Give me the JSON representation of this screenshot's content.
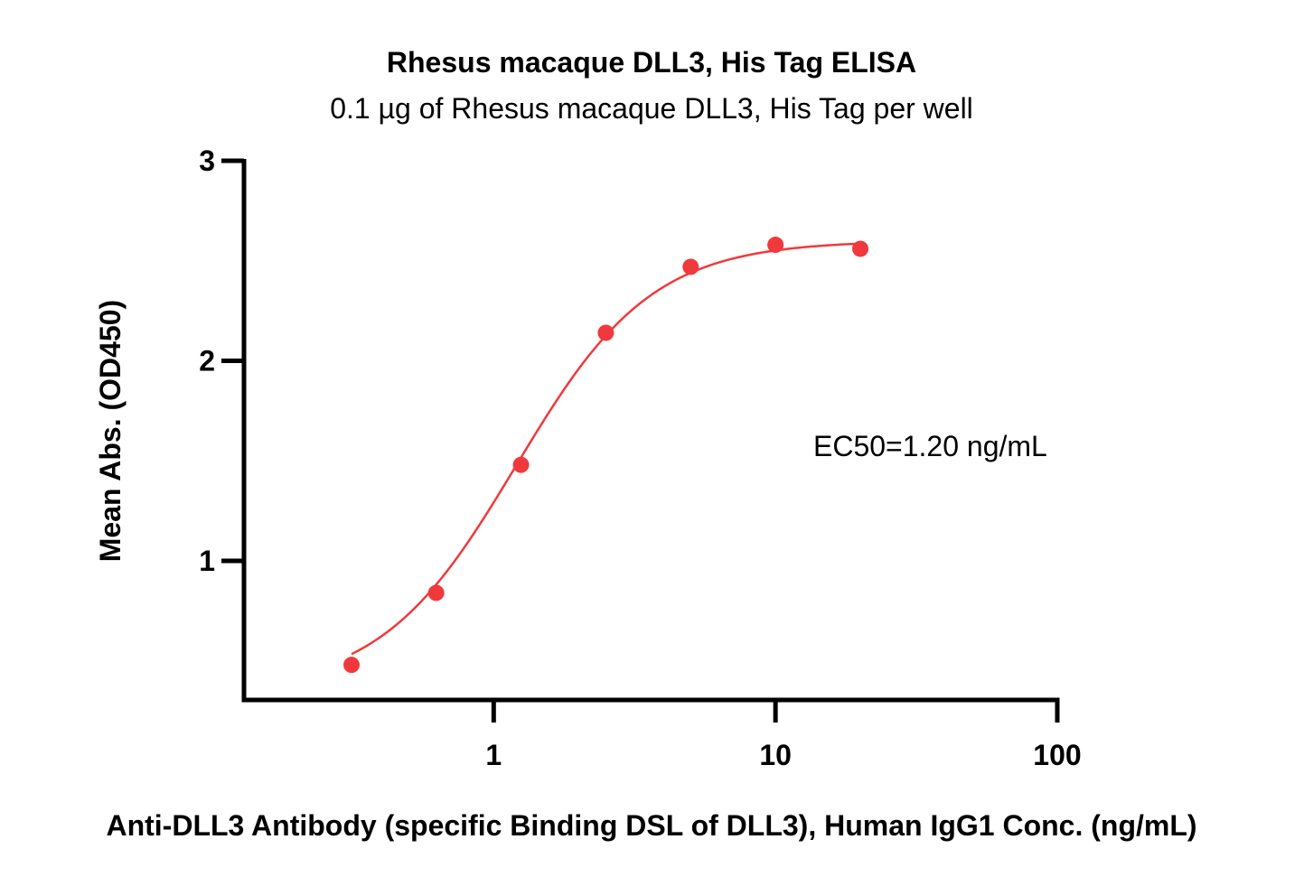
{
  "chart_data": {
    "type": "scatter",
    "title": "Rhesus macaque DLL3, His Tag ELISA",
    "subtitle": "0.1 µg of Rhesus macaque DLL3, His Tag per well",
    "xlabel": "Anti-DLL3 Antibody (specific Binding DSL of DLL3), Human IgG1 Conc. (ng/mL)",
    "ylabel": "Mean Abs. (OD450)",
    "x_scale": "log",
    "xlim": [
      0.13,
      100
    ],
    "ylim": [
      0.3,
      3
    ],
    "x_ticks": [
      1,
      10,
      100
    ],
    "x_tick_labels": [
      "1",
      "10",
      "100"
    ],
    "y_ticks": [
      1,
      2,
      3
    ],
    "y_tick_labels": [
      "1",
      "2",
      "3"
    ],
    "grid": false,
    "annotation": "EC50=1.20 ng/mL",
    "series": [
      {
        "color": "#f0393c",
        "x": [
          0.313,
          0.625,
          1.25,
          2.5,
          5,
          10,
          20
        ],
        "y": [
          0.48,
          0.84,
          1.48,
          2.14,
          2.47,
          2.58,
          2.56
        ]
      }
    ],
    "fit": {
      "model": "4PL",
      "ec50": 1.2,
      "bottom": 0.35,
      "top": 2.6,
      "hill": 1.8
    }
  }
}
